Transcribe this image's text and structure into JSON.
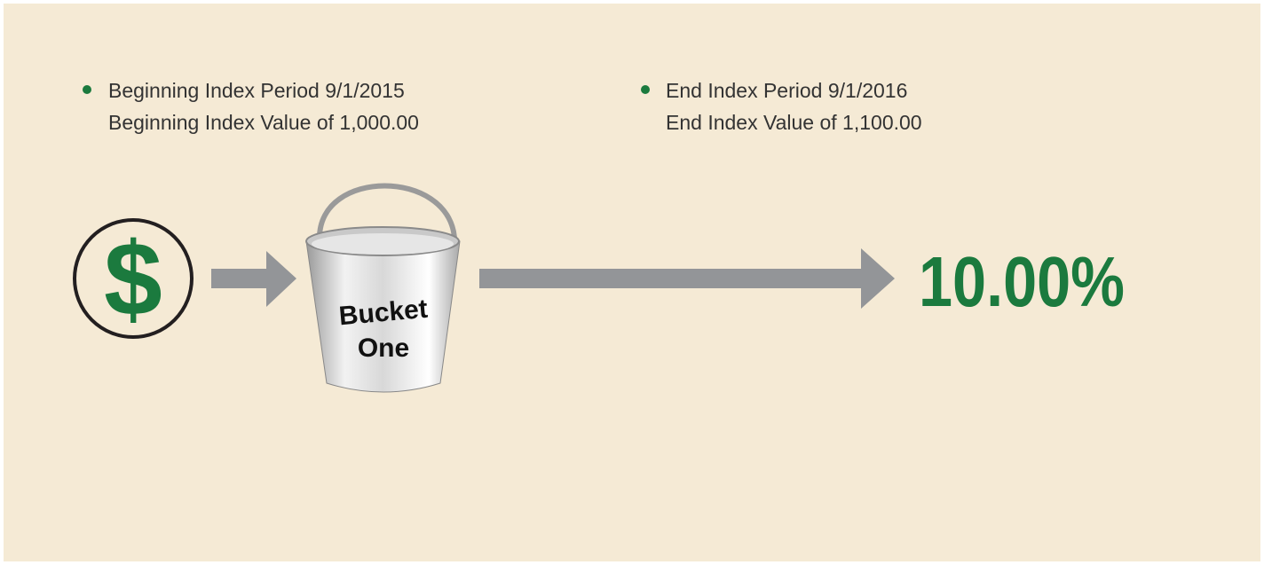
{
  "notes": [
    {
      "lines": [
        "Beginning Index Period 9/1/2015",
        "Beginning Index Value of 1,000.00"
      ]
    },
    {
      "lines": [
        "End Index Period 9/1/2016",
        "End Index Value of 1,100.00"
      ]
    }
  ],
  "icon": {
    "symbol": "$"
  },
  "bucket": {
    "label_lines": [
      "Bucket",
      "One"
    ]
  },
  "result": {
    "text": "10.00%"
  }
}
